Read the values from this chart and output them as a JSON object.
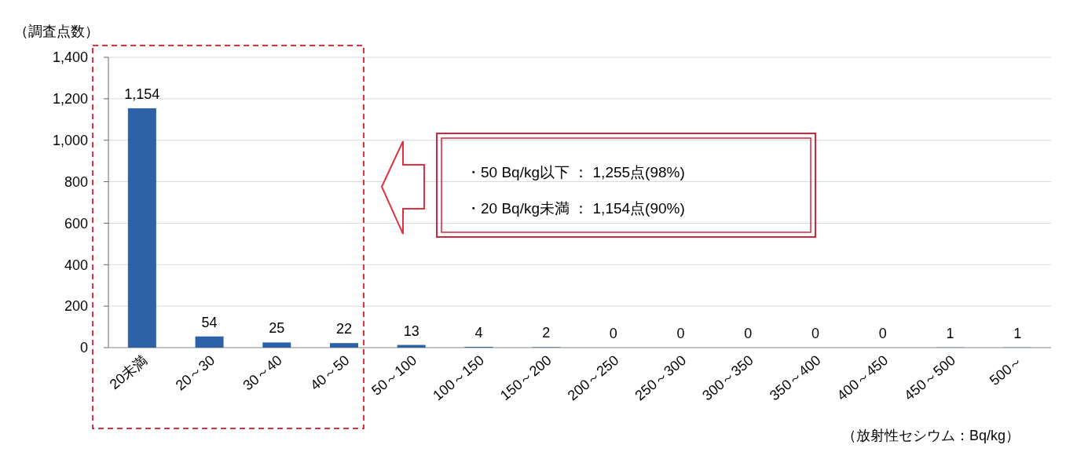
{
  "chart_data": {
    "type": "bar",
    "ylabel": "（調査点数）",
    "xlabel": "（放射性セシウム：Bq/kg）",
    "categories": [
      "20未満",
      "20～30",
      "30～40",
      "40～50",
      "50～100",
      "100～150",
      "150～200",
      "200～250",
      "250～300",
      "300～350",
      "350～400",
      "400～450",
      "450～500",
      "500～"
    ],
    "values": [
      1154,
      54,
      25,
      22,
      13,
      4,
      2,
      0,
      0,
      0,
      0,
      0,
      1,
      1
    ],
    "value_labels": [
      "1,154",
      "54",
      "25",
      "22",
      "13",
      "4",
      "2",
      "0",
      "0",
      "0",
      "0",
      "0",
      "1",
      "1"
    ],
    "color": "#2e62a8",
    "ylim": [
      0,
      1400
    ],
    "yticks": [
      0,
      200,
      400,
      600,
      800,
      {
        "value": 1000,
        "label": "1,000"
      },
      {
        "value": 1200,
        "label": "1,200"
      },
      {
        "value": 1400,
        "label": "1,400"
      }
    ],
    "grid": "y",
    "annotations": [
      "・50 Bq/kg以下 ： 1,255点(98%)",
      "・20 Bq/kg未満 ： 1,154点(90%)"
    ]
  }
}
